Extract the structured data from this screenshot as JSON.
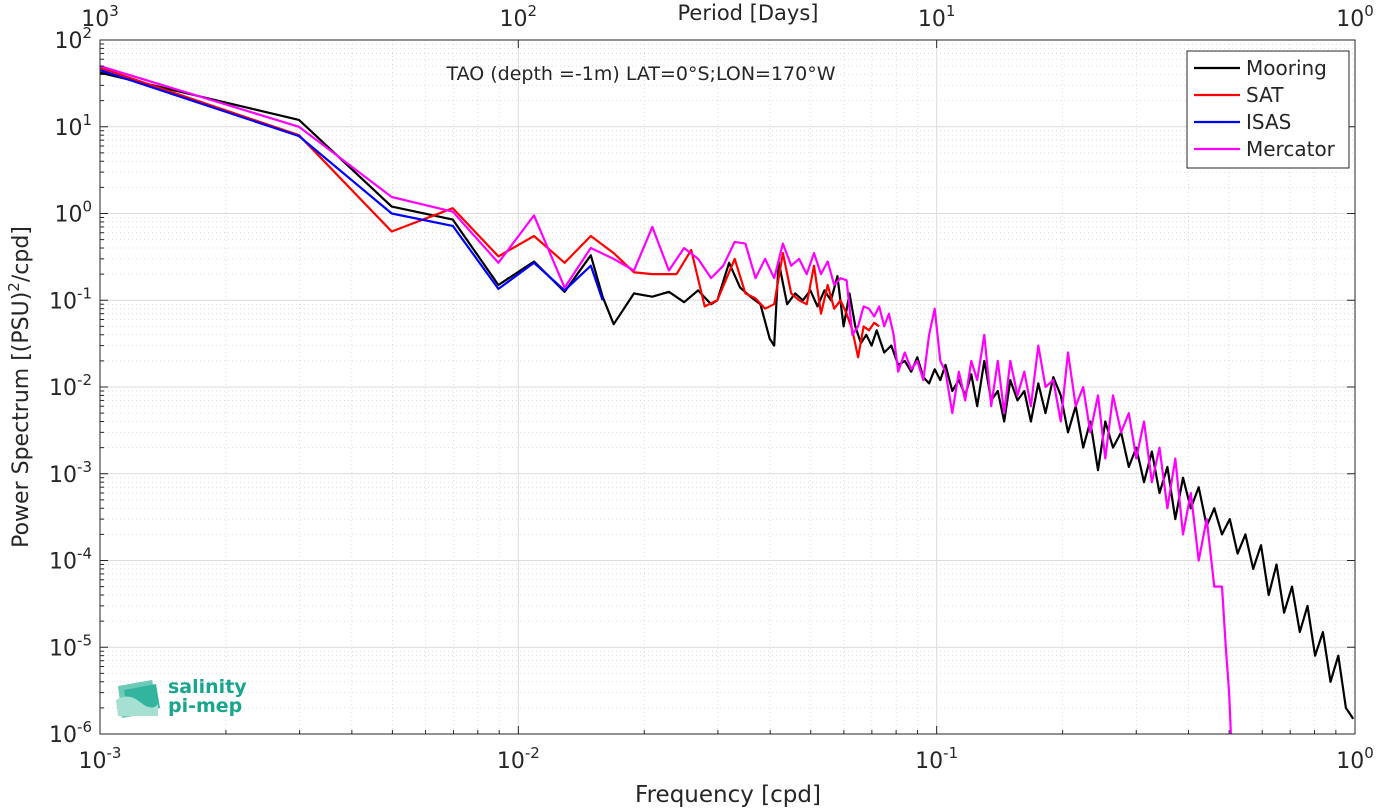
{
  "chart_data": {
    "type": "line",
    "title": "TAO (depth =-1m) LAT=0°S;LON=170°W",
    "xlabel": "Frequency [cpd]",
    "ylabel": "Power Spectrum [(PSU)²/cpd]",
    "ylabel_parts": {
      "pre": "Power Spectrum [(PSU)",
      "sup": "2",
      "post": "/cpd]"
    },
    "top_xlabel": "Period [Days]",
    "xscale": "log",
    "yscale": "log",
    "xlim": [
      0.001,
      1
    ],
    "ylim": [
      1e-06,
      100
    ],
    "grid": "on (major and minor)",
    "legend_position": "top-right",
    "x_ticks": [
      {
        "value": 0.001,
        "base": "10",
        "exp": "-3"
      },
      {
        "value": 0.01,
        "base": "10",
        "exp": "-2"
      },
      {
        "value": 0.1,
        "base": "10",
        "exp": "-1"
      },
      {
        "value": 1,
        "base": "10",
        "exp": "0"
      }
    ],
    "y_ticks": [
      {
        "value": 100,
        "base": "10",
        "exp": "2"
      },
      {
        "value": 10,
        "base": "10",
        "exp": "1"
      },
      {
        "value": 1,
        "base": "10",
        "exp": "0"
      },
      {
        "value": 0.1,
        "base": "10",
        "exp": "-1"
      },
      {
        "value": 0.01,
        "base": "10",
        "exp": "-2"
      },
      {
        "value": 0.001,
        "base": "10",
        "exp": "-3"
      },
      {
        "value": 0.0001,
        "base": "10",
        "exp": "-4"
      },
      {
        "value": 1e-05,
        "base": "10",
        "exp": "-5"
      },
      {
        "value": 1e-06,
        "base": "10",
        "exp": "-6"
      }
    ],
    "top_ticks": [
      {
        "value": 0.001,
        "base": "10",
        "exp": "3"
      },
      {
        "value": 0.01,
        "base": "10",
        "exp": "2"
      },
      {
        "value": 0.1,
        "base": "10",
        "exp": "1"
      },
      {
        "value": 1,
        "base": "10",
        "exp": "0"
      }
    ],
    "series": [
      {
        "name": "Mooring",
        "color": "#000000",
        "points": [
          [
            0.001,
            42
          ],
          [
            0.00299,
            12
          ],
          [
            0.00498,
            1.2
          ],
          [
            0.00697,
            0.85
          ],
          [
            0.00896,
            0.15
          ],
          [
            0.0109,
            0.28
          ],
          [
            0.0129,
            0.125
          ],
          [
            0.0149,
            0.33
          ],
          [
            0.0159,
            0.11
          ],
          [
            0.0169,
            0.053
          ],
          [
            0.0189,
            0.12
          ],
          [
            0.0209,
            0.11
          ],
          [
            0.0229,
            0.125
          ],
          [
            0.0249,
            0.095
          ],
          [
            0.0269,
            0.13
          ],
          [
            0.0289,
            0.09
          ],
          [
            0.0299,
            0.1
          ],
          [
            0.0319,
            0.27
          ],
          [
            0.0339,
            0.14
          ],
          [
            0.0359,
            0.11
          ],
          [
            0.0379,
            0.09
          ],
          [
            0.0399,
            0.036
          ],
          [
            0.0409,
            0.03
          ],
          [
            0.0419,
            0.28
          ],
          [
            0.0439,
            0.09
          ],
          [
            0.0459,
            0.12
          ],
          [
            0.0479,
            0.1
          ],
          [
            0.0499,
            0.13
          ],
          [
            0.0519,
            0.085
          ],
          [
            0.0539,
            0.13
          ],
          [
            0.0559,
            0.1
          ],
          [
            0.0579,
            0.19
          ],
          [
            0.0599,
            0.05
          ],
          [
            0.0619,
            0.12
          ],
          [
            0.0639,
            0.05
          ],
          [
            0.0659,
            0.032
          ],
          [
            0.0679,
            0.04
          ],
          [
            0.0699,
            0.03
          ],
          [
            0.0719,
            0.045
          ],
          [
            0.0749,
            0.025
          ],
          [
            0.0779,
            0.03
          ],
          [
            0.0809,
            0.018
          ],
          [
            0.0839,
            0.02
          ],
          [
            0.0869,
            0.015
          ],
          [
            0.0899,
            0.022
          ],
          [
            0.0929,
            0.013
          ],
          [
            0.0959,
            0.011
          ],
          [
            0.0989,
            0.016
          ],
          [
            0.102,
            0.012
          ],
          [
            0.105,
            0.018
          ],
          [
            0.109,
            0.009
          ],
          [
            0.113,
            0.012
          ],
          [
            0.117,
            0.008
          ],
          [
            0.121,
            0.014
          ],
          [
            0.125,
            0.006
          ],
          [
            0.13,
            0.02
          ],
          [
            0.135,
            0.007
          ],
          [
            0.14,
            0.009
          ],
          [
            0.145,
            0.004
          ],
          [
            0.15,
            0.012
          ],
          [
            0.156,
            0.007
          ],
          [
            0.162,
            0.009
          ],
          [
            0.168,
            0.004
          ],
          [
            0.175,
            0.011
          ],
          [
            0.182,
            0.005
          ],
          [
            0.19,
            0.013
          ],
          [
            0.198,
            0.008
          ],
          [
            0.206,
            0.003
          ],
          [
            0.215,
            0.006
          ],
          [
            0.224,
            0.002
          ],
          [
            0.233,
            0.004
          ],
          [
            0.243,
            0.0011
          ],
          [
            0.253,
            0.004
          ],
          [
            0.264,
            0.002
          ],
          [
            0.276,
            0.003
          ],
          [
            0.288,
            0.0012
          ],
          [
            0.3,
            0.002
          ],
          [
            0.313,
            0.0008
          ],
          [
            0.327,
            0.0018
          ],
          [
            0.341,
            0.0006
          ],
          [
            0.356,
            0.0012
          ],
          [
            0.372,
            0.0003
          ],
          [
            0.388,
            0.0009
          ],
          [
            0.405,
            0.0004
          ],
          [
            0.423,
            0.0007
          ],
          [
            0.442,
            0.00025
          ],
          [
            0.461,
            0.0004
          ],
          [
            0.481,
            0.0002
          ],
          [
            0.502,
            0.0003
          ],
          [
            0.524,
            0.00012
          ],
          [
            0.547,
            0.0002
          ],
          [
            0.571,
            8e-05
          ],
          [
            0.596,
            0.00015
          ],
          [
            0.622,
            4e-05
          ],
          [
            0.649,
            9e-05
          ],
          [
            0.677,
            2.5e-05
          ],
          [
            0.707,
            5e-05
          ],
          [
            0.738,
            1.5e-05
          ],
          [
            0.77,
            3e-05
          ],
          [
            0.803,
            8e-06
          ],
          [
            0.838,
            1.5e-05
          ],
          [
            0.874,
            4e-06
          ],
          [
            0.912,
            8e-06
          ],
          [
            0.951,
            2e-06
          ],
          [
            0.99,
            1.5e-06
          ]
        ]
      },
      {
        "name": "SAT",
        "color": "#ff0000",
        "points": [
          [
            0.001,
            48
          ],
          [
            0.00299,
            8
          ],
          [
            0.00498,
            0.62
          ],
          [
            0.00697,
            1.15
          ],
          [
            0.00896,
            0.32
          ],
          [
            0.0109,
            0.55
          ],
          [
            0.0129,
            0.27
          ],
          [
            0.0149,
            0.55
          ],
          [
            0.0169,
            0.35
          ],
          [
            0.0189,
            0.21
          ],
          [
            0.0209,
            0.2
          ],
          [
            0.0239,
            0.2
          ],
          [
            0.0259,
            0.38
          ],
          [
            0.0279,
            0.085
          ],
          [
            0.0299,
            0.1
          ],
          [
            0.0329,
            0.3
          ],
          [
            0.0349,
            0.12
          ],
          [
            0.0369,
            0.105
          ],
          [
            0.0389,
            0.08
          ],
          [
            0.0409,
            0.09
          ],
          [
            0.0429,
            0.35
          ],
          [
            0.0449,
            0.12
          ],
          [
            0.0469,
            0.1
          ],
          [
            0.0489,
            0.09
          ],
          [
            0.0509,
            0.25
          ],
          [
            0.0529,
            0.07
          ],
          [
            0.0549,
            0.15
          ],
          [
            0.0569,
            0.08
          ],
          [
            0.0589,
            0.1
          ],
          [
            0.0609,
            0.07
          ],
          [
            0.0629,
            0.045
          ],
          [
            0.0649,
            0.022
          ],
          [
            0.0669,
            0.05
          ],
          [
            0.0689,
            0.045
          ],
          [
            0.0709,
            0.055
          ],
          [
            0.0729,
            0.05
          ]
        ]
      },
      {
        "name": "ISAS",
        "color": "#0000ff",
        "points": [
          [
            0.001,
            45
          ],
          [
            0.00299,
            7.8
          ],
          [
            0.00498,
            1.0
          ],
          [
            0.00697,
            0.72
          ],
          [
            0.00896,
            0.135
          ],
          [
            0.0109,
            0.27
          ],
          [
            0.0129,
            0.13
          ],
          [
            0.0149,
            0.25
          ],
          [
            0.0159,
            0.1
          ]
        ]
      },
      {
        "name": "Mercator",
        "color": "#ff00ff",
        "points": [
          [
            0.001,
            50
          ],
          [
            0.00299,
            10
          ],
          [
            0.00498,
            1.55
          ],
          [
            0.00697,
            1.05
          ],
          [
            0.00896,
            0.27
          ],
          [
            0.0109,
            0.95
          ],
          [
            0.0129,
            0.14
          ],
          [
            0.0149,
            0.4
          ],
          [
            0.0169,
            0.3
          ],
          [
            0.0189,
            0.22
          ],
          [
            0.0209,
            0.7
          ],
          [
            0.0229,
            0.22
          ],
          [
            0.0249,
            0.4
          ],
          [
            0.0269,
            0.3
          ],
          [
            0.0289,
            0.18
          ],
          [
            0.0309,
            0.25
          ],
          [
            0.0329,
            0.47
          ],
          [
            0.0349,
            0.45
          ],
          [
            0.0369,
            0.18
          ],
          [
            0.0389,
            0.3
          ],
          [
            0.0409,
            0.18
          ],
          [
            0.0429,
            0.45
          ],
          [
            0.0449,
            0.25
          ],
          [
            0.0469,
            0.3
          ],
          [
            0.0489,
            0.2
          ],
          [
            0.0509,
            0.35
          ],
          [
            0.0529,
            0.2
          ],
          [
            0.0549,
            0.28
          ],
          [
            0.0569,
            0.15
          ],
          [
            0.0589,
            0.18
          ],
          [
            0.0609,
            0.17
          ],
          [
            0.0629,
            0.04
          ],
          [
            0.0649,
            0.05
          ],
          [
            0.0669,
            0.085
          ],
          [
            0.0689,
            0.08
          ],
          [
            0.0709,
            0.065
          ],
          [
            0.0729,
            0.085
          ],
          [
            0.0749,
            0.05
          ],
          [
            0.0769,
            0.07
          ],
          [
            0.0789,
            0.04
          ],
          [
            0.0809,
            0.015
          ],
          [
            0.0839,
            0.025
          ],
          [
            0.0869,
            0.016
          ],
          [
            0.0899,
            0.02
          ],
          [
            0.0929,
            0.012
          ],
          [
            0.0959,
            0.04
          ],
          [
            0.0989,
            0.08
          ],
          [
            0.102,
            0.02
          ],
          [
            0.105,
            0.015
          ],
          [
            0.109,
            0.005
          ],
          [
            0.113,
            0.015
          ],
          [
            0.117,
            0.007
          ],
          [
            0.121,
            0.02
          ],
          [
            0.125,
            0.012
          ],
          [
            0.13,
            0.04
          ],
          [
            0.135,
            0.006
          ],
          [
            0.14,
            0.02
          ],
          [
            0.145,
            0.005
          ],
          [
            0.15,
            0.02
          ],
          [
            0.156,
            0.008
          ],
          [
            0.162,
            0.015
          ],
          [
            0.168,
            0.006
          ],
          [
            0.175,
            0.03
          ],
          [
            0.182,
            0.01
          ],
          [
            0.19,
            0.012
          ],
          [
            0.198,
            0.004
          ],
          [
            0.206,
            0.025
          ],
          [
            0.215,
            0.006
          ],
          [
            0.224,
            0.01
          ],
          [
            0.233,
            0.003
          ],
          [
            0.243,
            0.008
          ],
          [
            0.253,
            0.0015
          ],
          [
            0.264,
            0.008
          ],
          [
            0.276,
            0.003
          ],
          [
            0.288,
            0.005
          ],
          [
            0.3,
            0.0015
          ],
          [
            0.313,
            0.004
          ],
          [
            0.327,
            0.0008
          ],
          [
            0.341,
            0.002
          ],
          [
            0.356,
            0.0004
          ],
          [
            0.372,
            0.0015
          ],
          [
            0.388,
            0.0002
          ],
          [
            0.405,
            0.0006
          ],
          [
            0.423,
            0.0001
          ],
          [
            0.442,
            0.0003
          ],
          [
            0.461,
            5e-05
          ],
          [
            0.481,
            5e-05
          ],
          [
            0.491,
            1e-05
          ],
          [
            0.5,
            3e-06
          ],
          [
            0.505,
            1e-06
          ]
        ]
      }
    ]
  },
  "logo": {
    "line1": "salinity",
    "line2": "pi-mep",
    "color": "#1aa58f"
  }
}
